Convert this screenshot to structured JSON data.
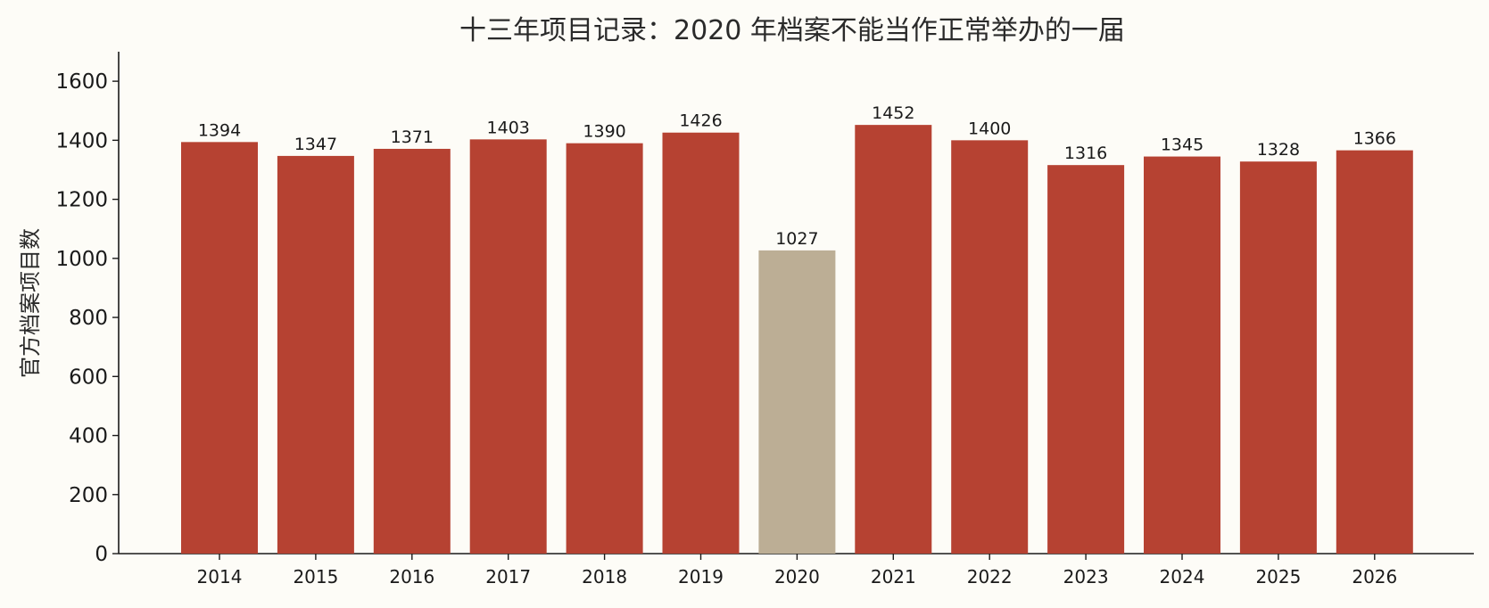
{
  "chart_data": {
    "type": "bar",
    "title": "十三年项目记录：2020 年档案不能当作正常举办的一届",
    "xlabel": "",
    "ylabel": "官方档案项目数",
    "categories": [
      "2014",
      "2015",
      "2016",
      "2017",
      "2018",
      "2019",
      "2020",
      "2021",
      "2022",
      "2023",
      "2024",
      "2025",
      "2026"
    ],
    "values": [
      1394,
      1347,
      1371,
      1403,
      1390,
      1426,
      1027,
      1452,
      1400,
      1316,
      1345,
      1328,
      1366
    ],
    "ylim": [
      0,
      1700
    ],
    "yticks": [
      0,
      200,
      400,
      600,
      800,
      1000,
      1200,
      1400,
      1600
    ],
    "grid": false,
    "legend": "none",
    "colors": {
      "normal": "#b64232",
      "highlight": "#bcae95",
      "axis": "#1a1a1a",
      "background": "#fdfcf7"
    },
    "highlight_category": "2020"
  }
}
